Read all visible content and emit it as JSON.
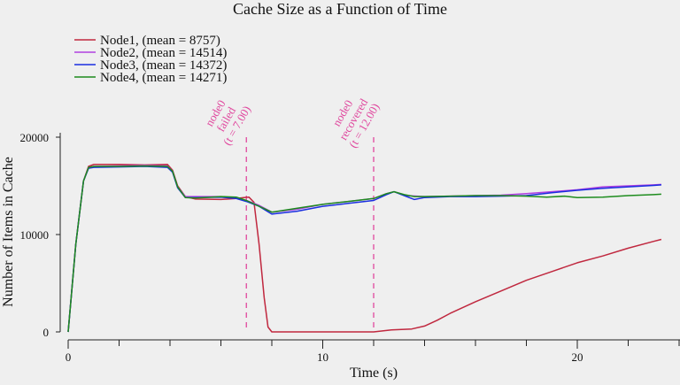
{
  "chart_data": {
    "type": "line",
    "title": "Cache Size as a Function of Time",
    "xlabel": "Time (s)",
    "ylabel": "Number of Items in Cache",
    "xlim": [
      0,
      24
    ],
    "ylim": [
      0,
      20000
    ],
    "x_ticks": [
      0,
      10,
      20
    ],
    "y_ticks": [
      0,
      10000,
      20000
    ],
    "grid": false,
    "legend_position": "top-left",
    "series": [
      {
        "name": "Node1, (mean = 8757)",
        "color": "#c0283f",
        "x": [
          0,
          0.3,
          0.6,
          0.8,
          1.0,
          2.0,
          3.0,
          3.9,
          4.1,
          4.3,
          4.6,
          5.0,
          6.0,
          6.6,
          6.9,
          7.1,
          7.3,
          7.5,
          7.7,
          7.85,
          8.0,
          8.5,
          10.0,
          12.0,
          12.7,
          13.5,
          14.0,
          14.5,
          15.0,
          16.0,
          17.0,
          18.0,
          19.0,
          20.0,
          21.0,
          22.0,
          23.0,
          23.3
        ],
        "y": [
          0,
          9000,
          15500,
          17000,
          17200,
          17200,
          17150,
          17200,
          16600,
          15000,
          13900,
          13650,
          13600,
          13700,
          13800,
          13850,
          13300,
          9000,
          3500,
          500,
          0,
          0,
          0,
          0,
          200,
          300,
          600,
          1200,
          1900,
          3100,
          4200,
          5300,
          6200,
          7100,
          7800,
          8600,
          9300,
          9500
        ]
      },
      {
        "name": "Node2, (mean = 14514)",
        "color": "#b040e0",
        "x": [
          0,
          0.3,
          0.6,
          0.8,
          1.0,
          2.0,
          3.0,
          3.9,
          4.1,
          4.3,
          4.6,
          5.0,
          6.0,
          6.6,
          7.0,
          7.5,
          8.0,
          9.0,
          10.0,
          11.0,
          12.0,
          12.5,
          12.8,
          13.3,
          14.0,
          15.0,
          16.0,
          17.0,
          18.0,
          19.0,
          20.0,
          21.0,
          22.0,
          23.0,
          23.3
        ],
        "y": [
          0,
          9000,
          15500,
          16900,
          17000,
          17050,
          17100,
          17050,
          16500,
          14900,
          13900,
          13900,
          13900,
          13750,
          13500,
          13000,
          12300,
          12600,
          13100,
          13400,
          13700,
          14200,
          14400,
          14000,
          13900,
          13950,
          14000,
          14050,
          14200,
          14400,
          14600,
          14900,
          15000,
          15100,
          15150
        ]
      },
      {
        "name": "Node3, (mean = 14372)",
        "color": "#1a2ee0",
        "x": [
          0,
          0.3,
          0.6,
          0.8,
          1.0,
          2.0,
          3.0,
          3.9,
          4.1,
          4.3,
          4.6,
          5.0,
          6.0,
          6.6,
          7.0,
          7.5,
          8.0,
          9.0,
          10.0,
          11.0,
          12.0,
          12.5,
          12.8,
          13.2,
          13.6,
          14.0,
          15.0,
          16.0,
          17.0,
          18.0,
          19.0,
          20.0,
          21.0,
          22.0,
          23.0,
          23.3
        ],
        "y": [
          0,
          9000,
          15500,
          16800,
          16900,
          16950,
          17000,
          16900,
          16400,
          14800,
          13800,
          13800,
          13850,
          13700,
          13400,
          12900,
          12100,
          12400,
          12900,
          13200,
          13500,
          14100,
          14400,
          14000,
          13600,
          13800,
          13900,
          13900,
          13950,
          14000,
          14300,
          14550,
          14750,
          14900,
          15050,
          15100
        ]
      },
      {
        "name": "Node4, (mean = 14271)",
        "color": "#1e8c1e",
        "x": [
          0,
          0.3,
          0.6,
          0.8,
          1.0,
          2.0,
          3.0,
          3.9,
          4.1,
          4.3,
          4.6,
          5.0,
          6.0,
          6.6,
          7.0,
          7.5,
          8.0,
          9.0,
          10.0,
          11.0,
          12.0,
          12.5,
          12.8,
          13.2,
          13.6,
          14.0,
          15.0,
          16.0,
          17.0,
          18.0,
          18.8,
          19.5,
          20.0,
          21.0,
          22.0,
          23.0,
          23.3
        ],
        "y": [
          0,
          9000,
          15500,
          16900,
          17000,
          17000,
          17050,
          17000,
          16500,
          14900,
          13800,
          13750,
          13900,
          13850,
          13500,
          12900,
          12300,
          12700,
          13100,
          13400,
          13700,
          14200,
          14400,
          14100,
          13900,
          13900,
          13950,
          14000,
          14000,
          13950,
          13850,
          13950,
          13800,
          13850,
          14000,
          14100,
          14150
        ]
      }
    ],
    "annotations": [
      {
        "x": 7.0,
        "lines": [
          "node0",
          "failed",
          "(t = 7.00)"
        ],
        "color": "#e0479e"
      },
      {
        "x": 12.0,
        "lines": [
          "node0",
          "recovered",
          "(t = 12.00)"
        ],
        "color": "#e0479e"
      }
    ]
  }
}
